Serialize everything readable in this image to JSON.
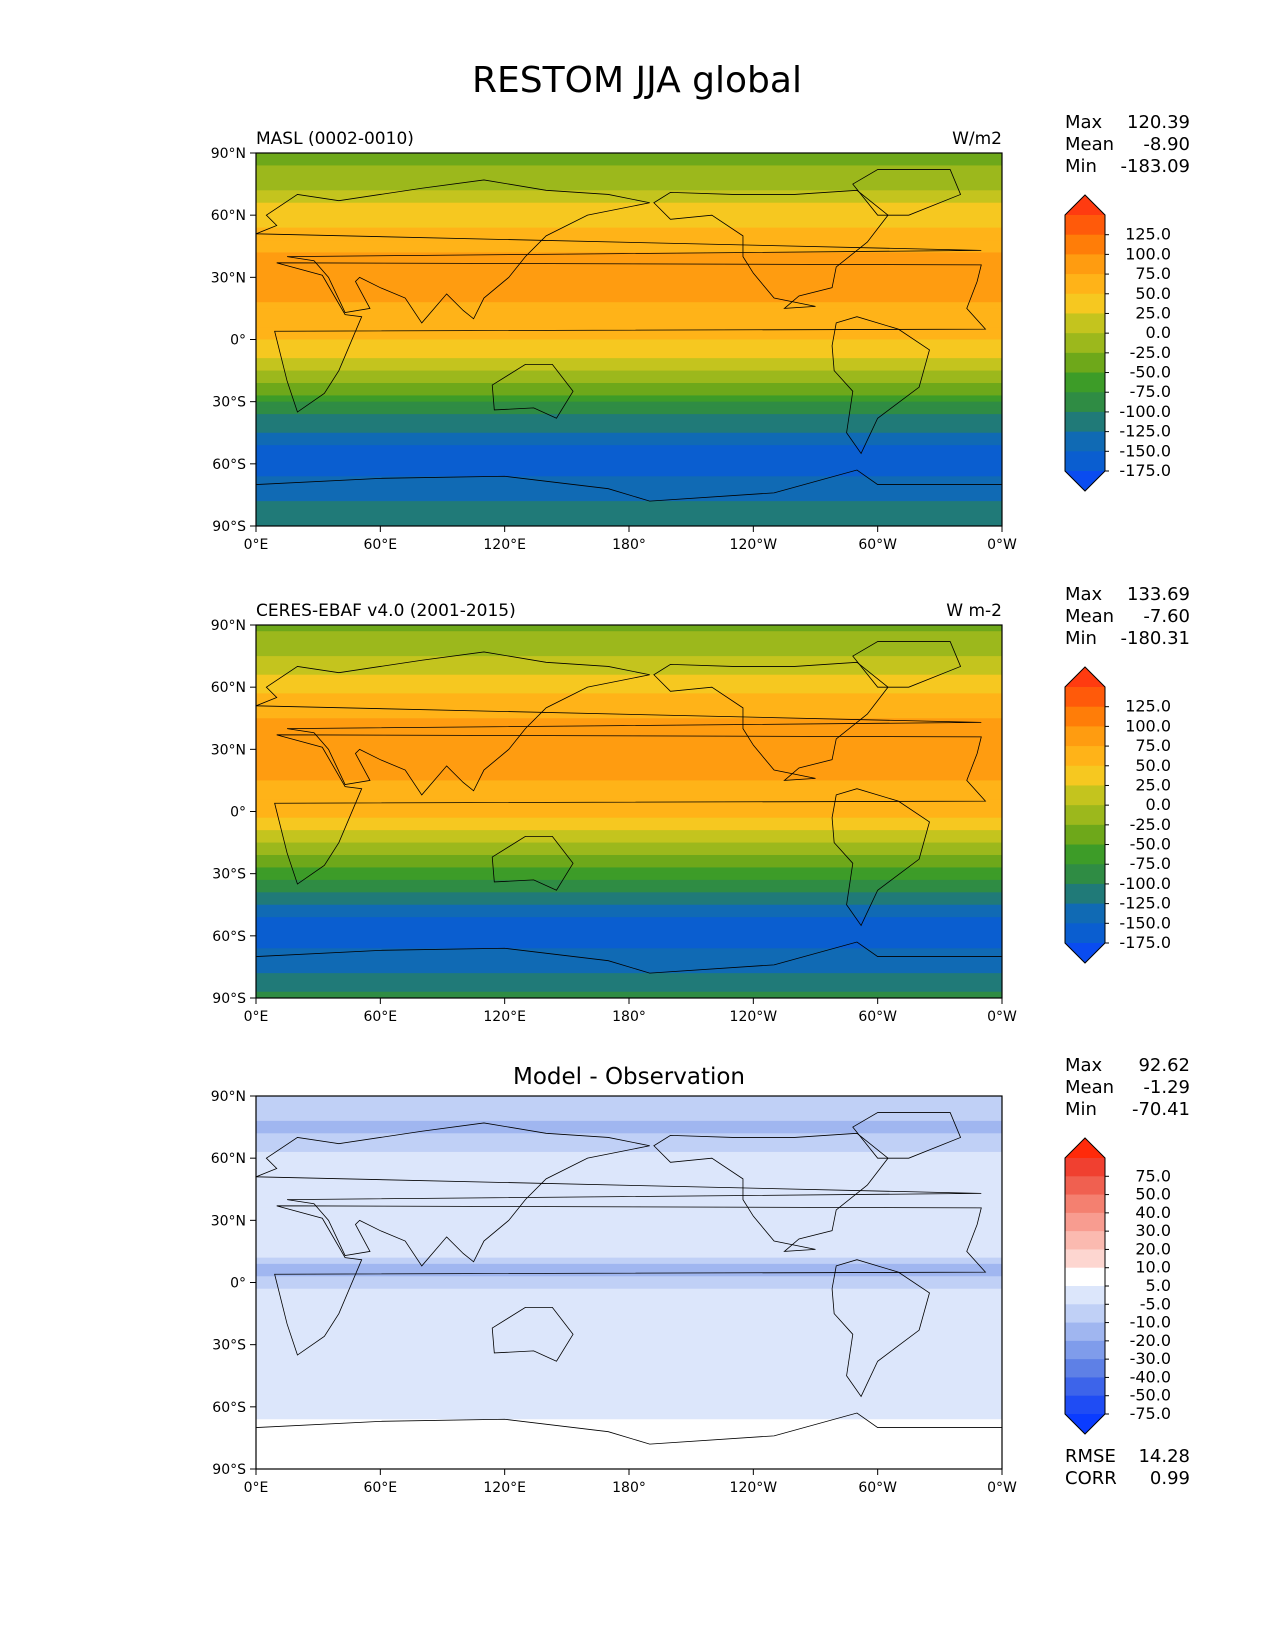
{
  "figure": {
    "title": "RESTOM JJA global"
  },
  "colors": {
    "ocean_sea_ice_south": "#4b8b52",
    "coast_line": "#000000"
  },
  "chart_data": [
    {
      "type": "heatmap",
      "panel": "model",
      "left_title": "MASL (0002-0010)",
      "center_title": "",
      "units": "W/m2",
      "stats": [
        {
          "label": "Max",
          "value": "120.39"
        },
        {
          "label": "Mean",
          "value": "-8.90"
        },
        {
          "label": "Min",
          "value": "-183.09"
        }
      ],
      "extra_stats": [],
      "lat_ticks": [
        "90°N",
        "60°N",
        "30°N",
        "0°",
        "30°S",
        "60°S",
        "90°S"
      ],
      "lon_ticks": [
        "0°E",
        "60°E",
        "120°E",
        "180°",
        "120°W",
        "60°W",
        "0°W"
      ],
      "xlim": [
        0,
        360
      ],
      "ylim": [
        -90,
        90
      ],
      "colorbar": {
        "levels": [
          "125.0",
          "100.0",
          "75.0",
          "50.0",
          "25.0",
          "0.0",
          "-25.0",
          "-50.0",
          "-75.0",
          "-100.0",
          "-125.0",
          "-150.0",
          "-175.0"
        ],
        "colors": [
          "#ff3b10",
          "#ff5a0a",
          "#ff7d08",
          "#ff9c10",
          "#ffb318",
          "#f6c820",
          "#c4c41e",
          "#9cb81c",
          "#6ea81a",
          "#3d9c28",
          "#2f8c44",
          "#207a78",
          "#106ab4",
          "#0a5ed0",
          "#0a4cf0"
        ],
        "extend": "both"
      },
      "zonal_profile": [
        {
          "lat": 90,
          "value": -40
        },
        {
          "lat": 75,
          "value": -5
        },
        {
          "lat": 60,
          "value": 40
        },
        {
          "lat": 45,
          "value": 70
        },
        {
          "lat": 30,
          "value": 90
        },
        {
          "lat": 15,
          "value": 70
        },
        {
          "lat": 0,
          "value": 50
        },
        {
          "lat": -10,
          "value": 20
        },
        {
          "lat": -20,
          "value": -20
        },
        {
          "lat": -30,
          "value": -70
        },
        {
          "lat": -40,
          "value": -110
        },
        {
          "lat": -50,
          "value": -145
        },
        {
          "lat": -60,
          "value": -170
        },
        {
          "lat": -70,
          "value": -140
        },
        {
          "lat": -90,
          "value": -100
        }
      ]
    },
    {
      "type": "heatmap",
      "panel": "observation",
      "left_title": "CERES-EBAF v4.0 (2001-2015)",
      "center_title": "",
      "units": "W m-2",
      "stats": [
        {
          "label": "Max",
          "value": "133.69"
        },
        {
          "label": "Mean",
          "value": "-7.60"
        },
        {
          "label": "Min",
          "value": "-180.31"
        }
      ],
      "extra_stats": [],
      "lat_ticks": [
        "90°N",
        "60°N",
        "30°N",
        "0°",
        "30°S",
        "60°S",
        "90°S"
      ],
      "lon_ticks": [
        "0°E",
        "60°E",
        "120°E",
        "180°",
        "120°W",
        "60°W",
        "0°W"
      ],
      "xlim": [
        0,
        360
      ],
      "ylim": [
        -90,
        90
      ],
      "colorbar": {
        "levels": [
          "125.0",
          "100.0",
          "75.0",
          "50.0",
          "25.0",
          "0.0",
          "-25.0",
          "-50.0",
          "-75.0",
          "-100.0",
          "-125.0",
          "-150.0",
          "-175.0"
        ],
        "colors": [
          "#ff3b10",
          "#ff5a0a",
          "#ff7d08",
          "#ff9c10",
          "#ffb318",
          "#f6c820",
          "#c4c41e",
          "#9cb81c",
          "#6ea81a",
          "#3d9c28",
          "#2f8c44",
          "#207a78",
          "#106ab4",
          "#0a5ed0",
          "#0a4cf0"
        ],
        "extend": "both"
      },
      "zonal_profile": [
        {
          "lat": 90,
          "value": -35
        },
        {
          "lat": 75,
          "value": 0
        },
        {
          "lat": 60,
          "value": 45
        },
        {
          "lat": 45,
          "value": 75
        },
        {
          "lat": 30,
          "value": 95
        },
        {
          "lat": 15,
          "value": 75
        },
        {
          "lat": 0,
          "value": 55
        },
        {
          "lat": -10,
          "value": 25
        },
        {
          "lat": -20,
          "value": -15
        },
        {
          "lat": -30,
          "value": -65
        },
        {
          "lat": -40,
          "value": -110
        },
        {
          "lat": -50,
          "value": -145
        },
        {
          "lat": -60,
          "value": -165
        },
        {
          "lat": -70,
          "value": -140
        },
        {
          "lat": -90,
          "value": -95
        }
      ]
    },
    {
      "type": "heatmap",
      "panel": "difference",
      "left_title": "",
      "center_title": "Model - Observation",
      "units": "",
      "stats": [
        {
          "label": "Max",
          "value": "92.62"
        },
        {
          "label": "Mean",
          "value": "-1.29"
        },
        {
          "label": "Min",
          "value": "-70.41"
        }
      ],
      "extra_stats": [
        {
          "label": "RMSE",
          "value": "14.28"
        },
        {
          "label": "CORR",
          "value": "0.99"
        }
      ],
      "lat_ticks": [
        "90°N",
        "60°N",
        "30°N",
        "0°",
        "30°S",
        "60°S",
        "90°S"
      ],
      "lon_ticks": [
        "0°E",
        "60°E",
        "120°E",
        "180°",
        "120°W",
        "60°W",
        "0°W"
      ],
      "xlim": [
        0,
        360
      ],
      "ylim": [
        -90,
        90
      ],
      "colorbar": {
        "levels": [
          "75.0",
          "50.0",
          "40.0",
          "30.0",
          "20.0",
          "10.0",
          "5.0",
          "-5.0",
          "-10.0",
          "-20.0",
          "-30.0",
          "-40.0",
          "-50.0",
          "-75.0"
        ],
        "colors": [
          "#ff2a0a",
          "#f04030",
          "#f06050",
          "#f48070",
          "#f89c90",
          "#fbbab0",
          "#fdd6d0",
          "#ffffff",
          "#dce6fb",
          "#c0d0f6",
          "#a0b6f0",
          "#7f9ceb",
          "#5e80e6",
          "#3d64ea",
          "#1f4cf4",
          "#0a3cff"
        ],
        "extend": "both"
      },
      "zonal_profile": [
        {
          "lat": 90,
          "value": -5
        },
        {
          "lat": 75,
          "value": -12
        },
        {
          "lat": 60,
          "value": -2
        },
        {
          "lat": 45,
          "value": 4
        },
        {
          "lat": 30,
          "value": -3
        },
        {
          "lat": 15,
          "value": -2
        },
        {
          "lat": 5,
          "value": -18
        },
        {
          "lat": 0,
          "value": -6
        },
        {
          "lat": -15,
          "value": 4
        },
        {
          "lat": -30,
          "value": 1
        },
        {
          "lat": -45,
          "value": 3
        },
        {
          "lat": -60,
          "value": 0
        },
        {
          "lat": -70,
          "value": 8
        },
        {
          "lat": -90,
          "value": 6
        }
      ]
    }
  ]
}
